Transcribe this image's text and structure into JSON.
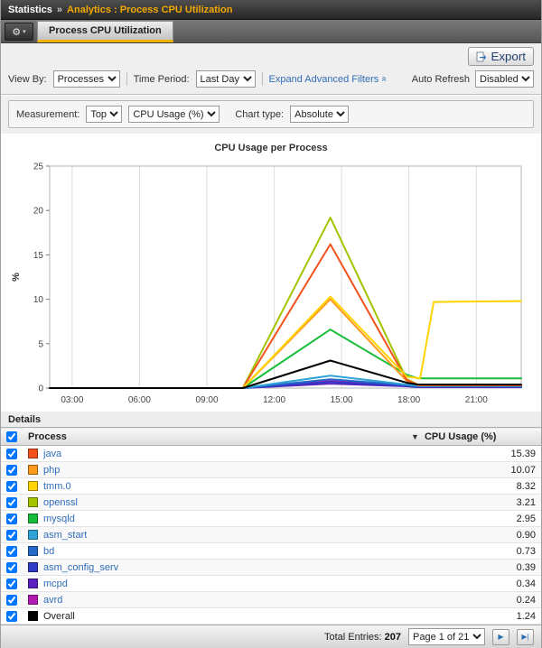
{
  "header": {
    "breadcrumb_root": "Statistics",
    "breadcrumb_sep": "»",
    "breadcrumb_path": "Analytics : Process CPU Utilization"
  },
  "icons": {
    "gear": "⚙",
    "gear_caret": "▾",
    "advanced_chevron": "»",
    "page_next": "▶",
    "page_last": "▶|"
  },
  "tabs": {
    "active": "Process CPU Utilization"
  },
  "toolbar": {
    "export_label": "Export"
  },
  "filters": {
    "view_by_label": "View By:",
    "view_by_value": "Processes",
    "time_period_label": "Time Period:",
    "time_period_value": "Last Day",
    "advanced_filters_label": "Expand Advanced Filters",
    "auto_refresh_label": "Auto Refresh",
    "auto_refresh_value": "Disabled"
  },
  "measurement": {
    "label": "Measurement:",
    "measurement_value": "Top",
    "metric_value": "CPU Usage (%)",
    "chart_type_label": "Chart type:",
    "chart_type_value": "Absolute"
  },
  "chart_data": {
    "type": "line",
    "title": "CPU Usage per Process",
    "ylabel": "%",
    "ylim": [
      0,
      25
    ],
    "yticks": [
      0,
      5,
      10,
      15,
      20,
      25
    ],
    "xlim": [
      2,
      23
    ],
    "xticks": [
      {
        "t": 3,
        "label": "03:00"
      },
      {
        "t": 6,
        "label": "06:00"
      },
      {
        "t": 9,
        "label": "09:00"
      },
      {
        "t": 12,
        "label": "12:00"
      },
      {
        "t": 15,
        "label": "15:00"
      },
      {
        "t": 18,
        "label": "18:00"
      },
      {
        "t": 21,
        "label": "21:00"
      }
    ],
    "grid": "vertical",
    "legend_position": "table-below",
    "series": [
      {
        "name": "avrd",
        "color": "#b11ab1",
        "points": [
          [
            2,
            0
          ],
          [
            10.6,
            0
          ],
          [
            14.5,
            0.8
          ],
          [
            17.9,
            0.3
          ],
          [
            18.4,
            0.15
          ],
          [
            23,
            0.15
          ]
        ]
      },
      {
        "name": "mcpd",
        "color": "#5a21c0",
        "points": [
          [
            2,
            0
          ],
          [
            10.6,
            0
          ],
          [
            14.5,
            0.5
          ],
          [
            17.9,
            0.2
          ],
          [
            18.4,
            0.1
          ],
          [
            23,
            0.1
          ]
        ]
      },
      {
        "name": "asm_config_serv",
        "color": "#2f3bc4",
        "points": [
          [
            2,
            0
          ],
          [
            10.6,
            0
          ],
          [
            14.5,
            0.7
          ],
          [
            17.9,
            0.25
          ],
          [
            18.4,
            0.12
          ],
          [
            23,
            0.12
          ]
        ]
      },
      {
        "name": "bd",
        "color": "#2468c8",
        "points": [
          [
            2,
            0
          ],
          [
            10.6,
            0
          ],
          [
            14.5,
            1.0
          ],
          [
            17.9,
            0.35
          ],
          [
            18.4,
            0.2
          ],
          [
            23,
            0.2
          ]
        ]
      },
      {
        "name": "asm_start",
        "color": "#2fa3d8",
        "points": [
          [
            2,
            0
          ],
          [
            10.6,
            0
          ],
          [
            14.5,
            1.4
          ],
          [
            17.9,
            0.4
          ],
          [
            18.4,
            0.25
          ],
          [
            23,
            0.25
          ]
        ]
      },
      {
        "name": "mysqld",
        "color": "#17bd3a",
        "points": [
          [
            2,
            0
          ],
          [
            10.6,
            0
          ],
          [
            14.5,
            6.6
          ],
          [
            17.9,
            1.5
          ],
          [
            18.4,
            1.1
          ],
          [
            23,
            1.1
          ]
        ]
      },
      {
        "name": "openssl",
        "color": "#a4c400",
        "points": [
          [
            2,
            0
          ],
          [
            10.6,
            0
          ],
          [
            14.5,
            19.2
          ],
          [
            17.9,
            1.0
          ],
          [
            18.4,
            0.4
          ],
          [
            23,
            0.35
          ]
        ]
      },
      {
        "name": "php",
        "color": "#ff9a1a",
        "points": [
          [
            2,
            0
          ],
          [
            10.6,
            0
          ],
          [
            14.5,
            10.0
          ],
          [
            17.9,
            0.8
          ],
          [
            18.4,
            0.3
          ],
          [
            23,
            0.3
          ]
        ]
      },
      {
        "name": "java",
        "color": "#f4521c",
        "points": [
          [
            2,
            0
          ],
          [
            10.6,
            0
          ],
          [
            14.5,
            16.2
          ],
          [
            17.9,
            0.9
          ],
          [
            18.4,
            0.35
          ],
          [
            23,
            0.3
          ]
        ]
      },
      {
        "name": "tmm.0",
        "color": "#ffd400",
        "points": [
          [
            2,
            0
          ],
          [
            10.6,
            0
          ],
          [
            14.5,
            10.3
          ],
          [
            17.9,
            1.3
          ],
          [
            18.5,
            1.1
          ],
          [
            19.1,
            9.7
          ],
          [
            23,
            9.8
          ]
        ]
      },
      {
        "name": "Overall",
        "color": "#000000",
        "points": [
          [
            2,
            0
          ],
          [
            10.6,
            0
          ],
          [
            14.5,
            3.1
          ],
          [
            17.9,
            0.6
          ],
          [
            18.4,
            0.4
          ],
          [
            23,
            0.4
          ]
        ]
      }
    ]
  },
  "details": {
    "title": "Details",
    "columns": {
      "process": "Process",
      "cpu": "CPU Usage (%)"
    },
    "sort_indicator": "▼",
    "rows": [
      {
        "name": "java",
        "color": "#f4521c",
        "value": "15.39",
        "link": true
      },
      {
        "name": "php",
        "color": "#ff9a1a",
        "value": "10.07",
        "link": true
      },
      {
        "name": "tmm.0",
        "color": "#ffd400",
        "value": "8.32",
        "link": true
      },
      {
        "name": "openssl",
        "color": "#a4c400",
        "value": "3.21",
        "link": true
      },
      {
        "name": "mysqld",
        "color": "#17bd3a",
        "value": "2.95",
        "link": true
      },
      {
        "name": "asm_start",
        "color": "#2fa3d8",
        "value": "0.90",
        "link": true
      },
      {
        "name": "bd",
        "color": "#2468c8",
        "value": "0.73",
        "link": true
      },
      {
        "name": "asm_config_serv",
        "color": "#2f3bc4",
        "value": "0.39",
        "link": true
      },
      {
        "name": "mcpd",
        "color": "#5a21c0",
        "value": "0.34",
        "link": true
      },
      {
        "name": "avrd",
        "color": "#b11ab1",
        "value": "0.24",
        "link": true
      },
      {
        "name": "Overall",
        "color": "#000000",
        "value": "1.24",
        "link": false
      }
    ]
  },
  "footer": {
    "total_label": "Total Entries:",
    "total_value": "207",
    "page_value": "Page 1 of 21"
  }
}
